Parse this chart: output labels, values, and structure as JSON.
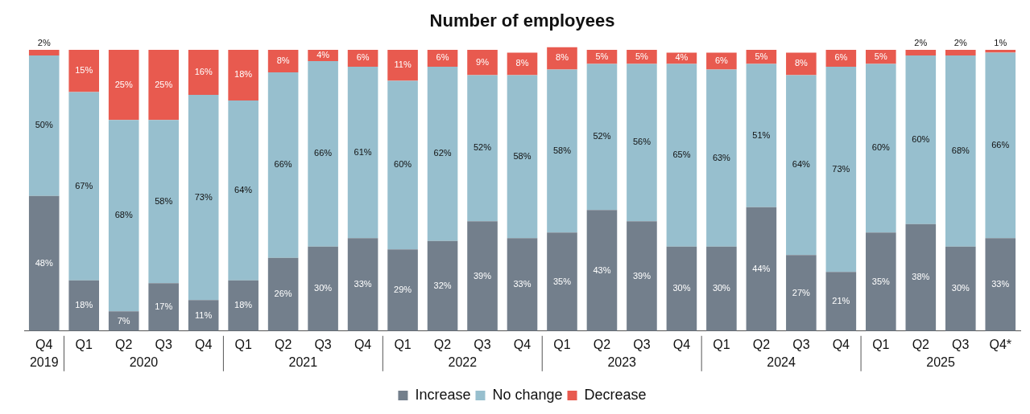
{
  "chart_data": {
    "type": "bar",
    "title": "Number of employees",
    "categories": [
      "Q4",
      "Q1",
      "Q2",
      "Q3",
      "Q4",
      "Q1",
      "Q2",
      "Q3",
      "Q4",
      "Q1",
      "Q2",
      "Q3",
      "Q4",
      "Q1",
      "Q2",
      "Q3",
      "Q4",
      "Q1",
      "Q2",
      "Q3",
      "Q4",
      "Q1",
      "Q2",
      "Q3",
      "Q4*"
    ],
    "series": [
      {
        "name": "Increase",
        "color": "#737f8c",
        "values": [
          48,
          18,
          7,
          17,
          11,
          18,
          26,
          30,
          33,
          29,
          32,
          39,
          33,
          35,
          43,
          39,
          30,
          30,
          44,
          27,
          21,
          35,
          38,
          30,
          33
        ],
        "value_labels": [
          "48%",
          "18%",
          "7%",
          "17%",
          "11%",
          "18%",
          "26%",
          "30%",
          "33%",
          "29%",
          "32%",
          "39%",
          "33%",
          "35%",
          "43%",
          "39%",
          "30%",
          "30%",
          "44%",
          "27%",
          "21%",
          "35%",
          "38%",
          "30%",
          "33%"
        ]
      },
      {
        "name": "No change",
        "color": "#97bfce",
        "values": [
          50,
          67,
          68,
          58,
          73,
          64,
          66,
          66,
          61,
          60,
          62,
          52,
          58,
          58,
          52,
          56,
          65,
          63,
          51,
          64,
          73,
          60,
          60,
          68,
          66
        ],
        "value_labels": [
          "50%",
          "67%",
          "68%",
          "58%",
          "73%",
          "64%",
          "66%",
          "66%",
          "61%",
          "60%",
          "62%",
          "52%",
          "58%",
          "58%",
          "52%",
          "56%",
          "65%",
          "63%",
          "51%",
          "64%",
          "73%",
          "60%",
          "60%",
          "68%",
          "66%"
        ]
      },
      {
        "name": "Decrease",
        "color": "#e85a4f",
        "values": [
          2,
          15,
          25,
          25,
          16,
          18,
          8,
          4,
          6,
          11,
          6,
          9,
          8,
          8,
          5,
          5,
          4,
          6,
          5,
          8,
          6,
          5,
          2,
          2,
          1
        ],
        "value_labels": [
          "2%",
          "15%",
          "25%",
          "25%",
          "16%",
          "18%",
          "8%",
          "4%",
          "6%",
          "11%",
          "6%",
          "9%",
          "8%",
          "8%",
          "5%",
          "5%",
          "4%",
          "6%",
          "5%",
          "8%",
          "6%",
          "5%",
          "2%",
          "2%",
          "1%"
        ]
      }
    ],
    "stacked": true,
    "grid": false,
    "legend": "bottom",
    "tick_labels": "x",
    "annotations": [
      "2019",
      "2020",
      "2021",
      "2022",
      "2023",
      "2024",
      "2025"
    ]
  }
}
